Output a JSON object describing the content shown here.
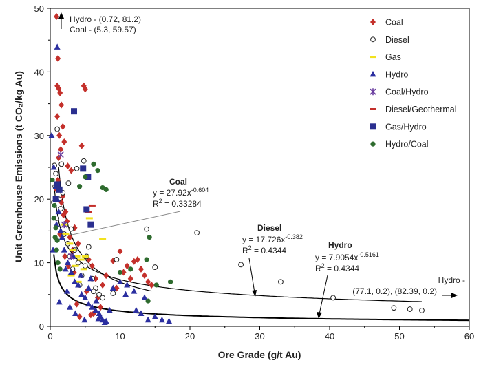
{
  "chart_data": {
    "type": "scatter",
    "xlabel": "Ore Grade (g/t Au)",
    "ylabel": "Unit Greenhouse Emissions (t CO₂/kg Au)",
    "xlim": [
      0,
      60
    ],
    "ylim": [
      0,
      50
    ],
    "x_ticks": [
      "0",
      "10",
      "20",
      "30",
      "40",
      "50",
      "60"
    ],
    "y_ticks": [
      "0",
      "10",
      "20",
      "30",
      "40",
      "50"
    ],
    "grid": false,
    "legend_position": "top-right",
    "colors": {
      "coal": "#c4302b",
      "diesel": "#ffffff",
      "gas": "#f2e21e",
      "hydro": "#2b2fa0",
      "coal_hydro": "#6b3fa0",
      "diesel_geothermal": "#c4302b",
      "gas_hydro": "#2a2f8f",
      "hydro_coal": "#2e6b2e"
    },
    "series": [
      {
        "name": "Coal",
        "key": "coal",
        "marker": "diamond",
        "x": [
          0.9,
          1.1,
          1.0,
          1.2,
          1.4,
          1.6,
          1.8,
          1.0,
          1.3,
          2.0,
          2.5,
          3.0,
          1.2,
          1.5,
          1.1,
          0.9,
          1.8,
          2.2,
          3.5,
          4.0,
          4.8,
          5.0,
          4.5,
          1.6,
          2.8,
          3.2,
          5.5,
          6.0,
          6.5,
          7.5,
          8.0,
          9.0,
          10.0,
          11.0,
          12.0,
          12.5,
          13.0,
          13.5,
          14.0,
          14.5,
          10.5,
          6.8,
          5.8,
          4.2,
          3.8,
          2.4,
          1.9,
          1.4,
          2.1,
          2.6,
          3.4,
          5.2,
          6.2,
          7.2,
          9.5,
          11.5
        ],
        "y": [
          48.7,
          42.1,
          37.8,
          37.4,
          36.7,
          34.8,
          31.4,
          33.0,
          30.0,
          29.0,
          25.2,
          24.5,
          26.5,
          27.8,
          23.0,
          21.5,
          20.5,
          18.0,
          15.5,
          13.0,
          37.8,
          37.3,
          28.4,
          19.5,
          14.0,
          12.0,
          10.5,
          9.5,
          7.5,
          6.5,
          8.0,
          10.3,
          11.8,
          9.5,
          10.2,
          10.5,
          9.0,
          8.0,
          7.0,
          6.5,
          8.5,
          4.5,
          1.8,
          1.5,
          3.5,
          16.5,
          17.5,
          14.5,
          11.0,
          9.5,
          8.5,
          5.5,
          2.0,
          3.0,
          6.0,
          7.5
        ]
      },
      {
        "name": "Diesel",
        "key": "diesel",
        "marker": "circle-open",
        "x": [
          0.6,
          0.8,
          1.0,
          0.7,
          1.5,
          2.0,
          2.5,
          3.0,
          2.8,
          3.5,
          4.0,
          4.5,
          5.0,
          5.5,
          6.0,
          6.5,
          7.0,
          0.9,
          1.2,
          1.8,
          2.2,
          3.2,
          4.2,
          5.2,
          6.2,
          7.5,
          9.0,
          9.5,
          13.8,
          15.0,
          21.0,
          27.3,
          33.0,
          40.5,
          49.2,
          51.5,
          53.2,
          2.6,
          3.8,
          4.8,
          1.6,
          0.5
        ],
        "y": [
          25.3,
          24.0,
          31.0,
          22.0,
          18.5,
          14.5,
          13.0,
          15.3,
          11.0,
          12.0,
          10.0,
          8.0,
          9.5,
          12.5,
          7.5,
          6.0,
          5.0,
          17.0,
          20.0,
          21.0,
          16.0,
          9.0,
          6.5,
          11.0,
          5.5,
          4.5,
          5.2,
          10.5,
          15.3,
          9.3,
          14.7,
          9.7,
          7.0,
          4.5,
          2.9,
          2.7,
          2.5,
          22.5,
          24.8,
          26.0,
          25.5,
          19.5
        ]
      },
      {
        "name": "Gas",
        "key": "gas",
        "marker": "dash",
        "x": [
          2.2,
          2.8,
          3.2,
          3.8,
          4.4,
          5.0,
          5.6,
          7.5,
          3.0,
          4.0,
          2.0,
          4.8,
          3.6
        ],
        "y": [
          14.5,
          13.0,
          12.0,
          11.0,
          10.5,
          11.0,
          17.0,
          13.7,
          8.0,
          7.0,
          16.0,
          9.0,
          9.5
        ]
      },
      {
        "name": "Hydro",
        "key": "hydro",
        "marker": "triangle",
        "x": [
          0.2,
          0.5,
          0.8,
          1.0,
          1.2,
          1.5,
          2.0,
          2.5,
          3.0,
          3.5,
          4.0,
          4.5,
          5.0,
          5.5,
          6.0,
          6.5,
          7.0,
          7.2,
          7.5,
          8.0,
          8.5,
          9.0,
          10.0,
          11.0,
          12.0,
          13.0,
          14.0,
          15.0,
          16.0,
          17.0,
          1.0,
          2.2,
          3.3,
          4.4,
          5.5,
          6.6,
          1.7,
          0.9,
          2.8,
          3.6,
          4.9,
          12.3,
          13.5,
          10.8,
          6.9,
          7.8,
          5.8,
          2.4,
          1.3,
          0.4
        ],
        "y": [
          30.0,
          25.0,
          22.0,
          43.9,
          18.0,
          15.0,
          12.0,
          10.0,
          8.5,
          7.0,
          6.5,
          5.0,
          4.5,
          3.5,
          3.0,
          2.5,
          2.0,
          1.5,
          1.0,
          0.8,
          2.5,
          6.0,
          7.0,
          6.5,
          5.5,
          2.0,
          1.0,
          1.5,
          1.0,
          0.8,
          20.0,
          9.0,
          11.0,
          8.0,
          6.0,
          4.0,
          14.0,
          16.0,
          3.0,
          2.0,
          1.0,
          2.5,
          4.5,
          5.0,
          1.2,
          0.6,
          7.5,
          5.5,
          3.8,
          12.0
        ]
      },
      {
        "name": "Coal/Hydro",
        "key": "coal_hydro",
        "marker": "star",
        "x": [
          1.5,
          2.0,
          3.0
        ],
        "y": [
          27.0,
          16.0,
          11.0
        ]
      },
      {
        "name": "Diesel/Geothermal",
        "key": "diesel_geothermal",
        "marker": "dash",
        "x": [
          6.0,
          5.5
        ],
        "y": [
          19.0,
          18.0
        ]
      },
      {
        "name": "Gas/Hydro",
        "key": "gas_hydro",
        "marker": "square",
        "x": [
          1.0,
          3.4,
          4.7,
          5.4,
          5.2,
          5.8,
          0.8,
          1.3
        ],
        "y": [
          22.3,
          33.8,
          24.8,
          23.5,
          18.4,
          16.0,
          20.0,
          21.5
        ]
      },
      {
        "name": "Hydro/Coal",
        "key": "hydro_coal",
        "marker": "circle-filled",
        "x": [
          0.3,
          0.5,
          0.7,
          0.9,
          1.1,
          1.4,
          6.2,
          6.8,
          7.5,
          8.0,
          5.0,
          4.2,
          14.2,
          17.2,
          13.8,
          11.5,
          10.0,
          14.0,
          15.2,
          0.6,
          0.8,
          1.0
        ],
        "y": [
          23.0,
          17.0,
          14.0,
          12.0,
          10.0,
          9.0,
          25.5,
          24.5,
          21.8,
          21.5,
          23.5,
          22.0,
          14.0,
          7.0,
          10.5,
          9.0,
          8.5,
          4.0,
          6.5,
          19.0,
          15.5,
          13.5
        ]
      }
    ],
    "fits": [
      {
        "key": "coal",
        "a": 27.92,
        "b": -0.604,
        "xrange": [
          1.2,
          14.5
        ]
      },
      {
        "key": "diesel",
        "a": 17.726,
        "b": -0.382,
        "xrange": [
          0.6,
          53.2
        ]
      },
      {
        "key": "hydro",
        "a": 7.9054,
        "b": -0.5161,
        "xrange": [
          0.5,
          60
        ]
      }
    ],
    "annotations": {
      "top": [
        "Hydro - (0.72, 81.2)",
        "Coal - (5.3, 59.57)"
      ],
      "coal": {
        "title": "Coal",
        "eq_base": "y = 27.92x",
        "eq_exp": "-0.604",
        "r2_base": "R",
        "r2_sup": "2",
        "r2_val": " = 0.33284"
      },
      "diesel": {
        "title": "Diesel",
        "eq_base": "y = 17.726x",
        "eq_exp": "-0.382",
        "r2_base": "R",
        "r2_sup": "2",
        "r2_val": " = 0.4344"
      },
      "hydro": {
        "title": "Hydro",
        "eq_base": "y = 7.9054x",
        "eq_exp": "-0.5161",
        "r2_base": "R",
        "r2_sup": "2",
        "r2_val": " = 0.4344"
      },
      "right": [
        "Hydro -",
        "(77.1, 0.2), (82.39, 0.2)"
      ]
    }
  }
}
